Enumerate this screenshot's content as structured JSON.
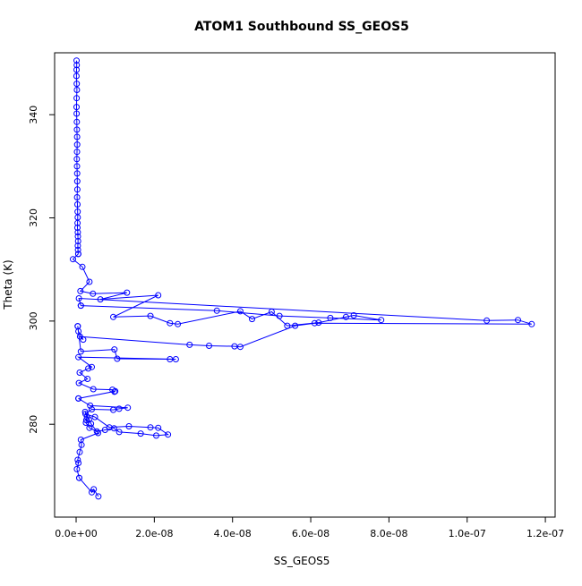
{
  "chart_data": {
    "type": "line",
    "title": "ATOM1 Southbound SS_GEOS5",
    "xlabel": "SS_GEOS5",
    "ylabel": "Theta (K)",
    "xlim": [
      -5.5e-09,
      1.225e-07
    ],
    "ylim": [
      262.0,
      352.0
    ],
    "xticks": [
      0,
      2e-08,
      4e-08,
      6e-08,
      8e-08,
      1e-07,
      1.2e-07
    ],
    "xtick_labels": [
      "0.0e+00",
      "2.0e-08",
      "4.0e-08",
      "6.0e-08",
      "8.0e-08",
      "1.0e-07",
      "1.2e-07"
    ],
    "yticks": [
      280,
      300,
      320,
      340
    ],
    "ytick_labels": [
      "280",
      "300",
      "320",
      "340"
    ],
    "grid": false,
    "legend": "none",
    "series_color": "#0000ff",
    "marker": "open-circle",
    "series": [
      {
        "x": [
          1.2e-10,
          1.5e-10,
          1.1e-10,
          9e-11,
          1.6e-10,
          2e-10,
          1.3e-10,
          1e-10,
          1.4e-10,
          1.8e-10,
          2.1e-10,
          2.4e-10,
          2.7e-10,
          2.2e-10,
          1.9e-10,
          2.3e-10,
          2.6e-10,
          2.9e-10,
          3.1e-10,
          2.5e-10,
          3.4e-10,
          3.8e-10,
          4e-10,
          3.6e-10,
          3.3e-10,
          4.2e-10,
          4.6e-10,
          5e-10,
          4.4e-10,
          4.8e-10,
          5.5e-10
        ],
        "y": [
          350.5,
          349.6,
          348.7,
          347.5,
          346.0,
          344.8,
          343.2,
          341.5,
          340.2,
          338.6,
          337.1,
          335.7,
          334.2,
          332.8,
          331.4,
          330.0,
          328.6,
          327.1,
          325.5,
          324.0,
          322.6,
          321.2,
          320.1,
          319.0,
          318.1,
          317.2,
          316.4,
          315.5,
          314.6,
          313.8,
          313.0
        ]
      },
      {
        "x": [
          5.5e-10,
          -8e-10,
          1.6e-09,
          3.4e-09,
          1.1e-09,
          4.3e-09,
          1.3e-08,
          6.2e-09,
          2.1e-08,
          9.5e-09,
          1.9e-08,
          2.4e-08,
          2.6e-08,
          4.2e-08,
          4.5e-08,
          5e-08,
          5.4e-08,
          6.2e-08,
          6.9e-08,
          7.1e-08,
          7.8e-08,
          6.5e-08,
          5.2e-08,
          3.6e-08,
          1.2e-09
        ],
        "y": [
          313.0,
          312.0,
          310.5,
          307.6,
          305.8,
          305.3,
          305.5,
          304.2,
          305.0,
          300.8,
          301.0,
          299.6,
          299.4,
          301.9,
          300.4,
          301.8,
          299.1,
          299.7,
          300.8,
          301.1,
          300.2,
          300.6,
          301.0,
          302.0,
          303.0
        ]
      },
      {
        "x": [
          1.2e-09,
          7e-10,
          1.05e-07,
          1.13e-07,
          1.165e-07,
          6.1e-08,
          5.6e-08,
          4.2e-08,
          4.05e-08,
          3.4e-08,
          2.9e-08,
          1e-09,
          1.8e-09,
          6e-10,
          4e-10
        ],
        "y": [
          303.0,
          304.4,
          300.1,
          300.2,
          299.4,
          299.6,
          299.1,
          295.0,
          295.1,
          295.2,
          295.4,
          297.0,
          296.4,
          298.0,
          299.0
        ]
      },
      {
        "x": [
          4e-10,
          1.2e-09,
          9.8e-09,
          1.05e-08,
          2.4e-08,
          2.55e-08,
          6e-10,
          4e-09,
          3.1e-09,
          9e-10,
          2.9e-09,
          7e-10,
          4.4e-09,
          9.3e-09,
          9.8e-09,
          1e-08,
          6e-10
        ],
        "y": [
          299.0,
          294.1,
          294.5,
          292.7,
          292.6,
          292.6,
          293.0,
          291.1,
          290.8,
          290.0,
          288.8,
          288.0,
          286.8,
          286.7,
          286.3,
          286.4,
          285.0
        ]
      },
      {
        "x": [
          6e-10,
          3.6e-09,
          1.32e-08,
          1.1e-08,
          9.5e-09,
          4e-09,
          2.4e-09,
          4.8e-09,
          8.5e-09,
          1.35e-08,
          1.9e-08,
          2.1e-08,
          2.35e-08,
          2.05e-08,
          1.65e-08,
          1.1e-08,
          9.7e-09,
          7.4e-09,
          5.3e-09,
          3.4e-09,
          2.5e-09,
          2.6e-09,
          2.8e-09,
          2.3e-09,
          3.3e-09,
          3.8e-09,
          5.6e-09,
          1.2e-09,
          1.4e-09,
          9e-10,
          4e-10,
          6e-10,
          2e-10,
          8e-10
        ],
        "y": [
          285.0,
          283.6,
          283.2,
          283.0,
          282.8,
          282.9,
          282.0,
          281.4,
          279.4,
          279.6,
          279.4,
          279.3,
          278.0,
          277.8,
          278.2,
          278.5,
          279.2,
          278.9,
          278.6,
          279.3,
          280.3,
          280.8,
          281.4,
          282.4,
          280.9,
          280.1,
          278.3,
          277.0,
          276.0,
          274.6,
          273.1,
          272.5,
          271.3,
          269.6
        ]
      },
      {
        "x": [
          8e-10,
          4e-09,
          4.5e-09,
          5.7e-09
        ],
        "y": [
          269.6,
          266.8,
          267.4,
          266.0
        ]
      }
    ]
  }
}
